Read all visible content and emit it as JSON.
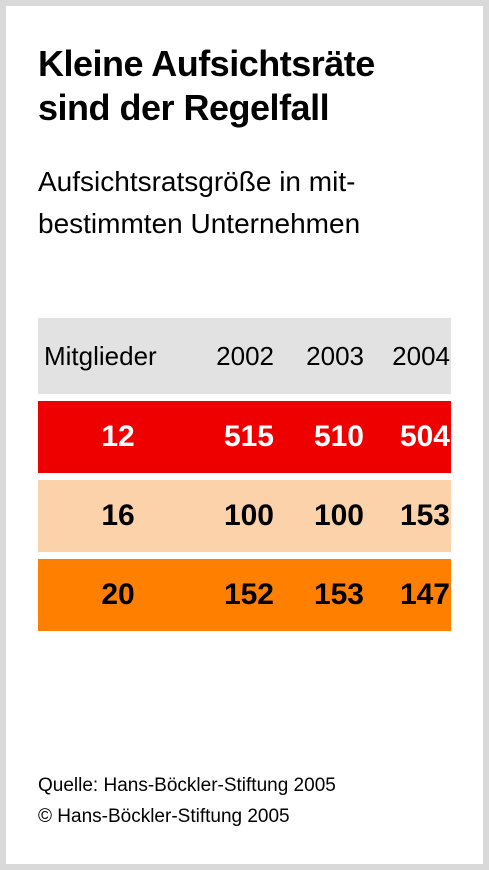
{
  "title_line1": "Kleine Aufsichtsräte",
  "title_line2": "sind der Regelfall",
  "subtitle_line1": "Aufsichtsratsgröße in mit-",
  "subtitle_line2": "bestimmten Unternehmen",
  "source": "Quelle: Hans-Böckler-Stiftung 2005",
  "copyright": "© Hans-Böckler-Stiftung 2005",
  "colors": {
    "row_12": "#ee0000",
    "row_16": "#fcd2aa",
    "row_20": "#ff8000",
    "header_bg": "#e2e2e2",
    "row_12_text": "#ffffff",
    "row_16_text": "#000000",
    "row_20_text": "#000000"
  },
  "chart_data": {
    "type": "table",
    "columns": [
      "Mitglieder",
      "2002",
      "2003",
      "2004"
    ],
    "rows": [
      {
        "label": "12",
        "values": [
          "515",
          "510",
          "504"
        ]
      },
      {
        "label": "16",
        "values": [
          "100",
          "100",
          "153"
        ]
      },
      {
        "label": "20",
        "values": [
          "152",
          "153",
          "147"
        ]
      }
    ]
  }
}
